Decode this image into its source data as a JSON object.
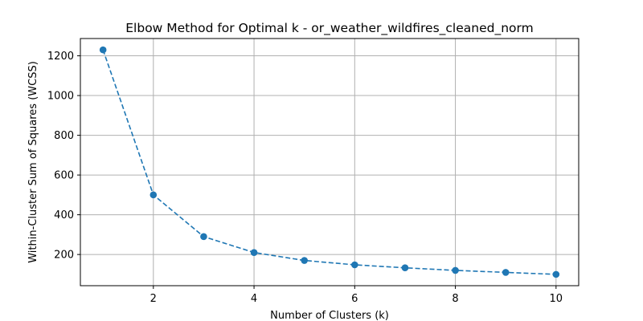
{
  "chart_data": {
    "type": "line",
    "title": "Elbow Method for Optimal k - or_weather_wildfires_cleaned_norm",
    "xlabel": "Number of Clusters (k)",
    "ylabel": "Within-Cluster Sum of Squares (WCSS)",
    "x": [
      1,
      2,
      3,
      4,
      5,
      6,
      7,
      8,
      9,
      10
    ],
    "series": [
      {
        "values": [
          1230,
          500,
          290,
          210,
          170,
          148,
          133,
          120,
          110,
          100
        ]
      }
    ],
    "xlim": [
      0.55,
      10.45
    ],
    "ylim": [
      43,
      1287
    ],
    "xticks": [
      2,
      4,
      6,
      8,
      10
    ],
    "yticks": [
      200,
      400,
      600,
      800,
      1000,
      1200
    ],
    "grid": true,
    "line_style": "dashed",
    "marker": "circle",
    "color": "#1f77b4"
  }
}
